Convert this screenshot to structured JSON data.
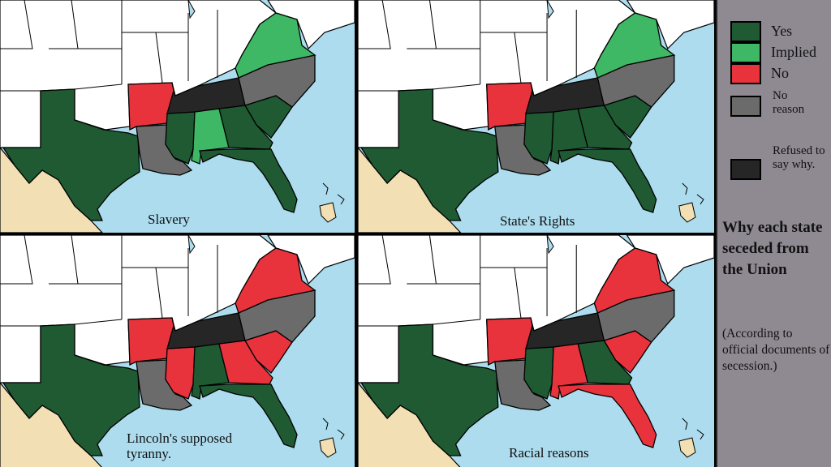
{
  "colors": {
    "yes": "#1f5a33",
    "implied": "#3fb865",
    "no": "#e8333d",
    "no_reason": "#6b6b6b",
    "refused": "#262626",
    "ocean": "#acdcee",
    "land": "#ffffff",
    "mexico": "#f2dfb3"
  },
  "legend": {
    "yes": "Yes",
    "implied": "Implied",
    "no": "No",
    "no_reason": "No reason",
    "refused": "Refused to say why."
  },
  "sidebar": {
    "title": "Why each state seceded from the Union",
    "note": "(According to official documents of secession.)"
  },
  "maps": [
    {
      "caption": "Slavery",
      "states": {
        "TX": "yes",
        "AR": "no",
        "LA": "no_reason",
        "MS": "yes",
        "AL": "implied",
        "GA": "yes",
        "SC": "yes",
        "FL": "yes",
        "TN": "refused",
        "NC": "no_reason",
        "VA": "implied"
      }
    },
    {
      "caption": "State's Rights",
      "states": {
        "TX": "yes",
        "AR": "no",
        "LA": "no_reason",
        "MS": "yes",
        "AL": "yes",
        "GA": "yes",
        "SC": "yes",
        "FL": "yes",
        "TN": "refused",
        "NC": "no_reason",
        "VA": "implied"
      }
    },
    {
      "caption": "Lincoln's supposed tyranny.",
      "states": {
        "TX": "yes",
        "AR": "no",
        "LA": "no_reason",
        "MS": "no",
        "AL": "yes",
        "GA": "no",
        "SC": "no",
        "FL": "yes",
        "TN": "refused",
        "NC": "no_reason",
        "VA": "no"
      }
    },
    {
      "caption": "Racial reasons",
      "states": {
        "TX": "yes",
        "AR": "no",
        "LA": "no_reason",
        "MS": "yes",
        "AL": "no",
        "GA": "yes",
        "SC": "no",
        "FL": "no",
        "TN": "refused",
        "NC": "no_reason",
        "VA": "no"
      }
    }
  ]
}
